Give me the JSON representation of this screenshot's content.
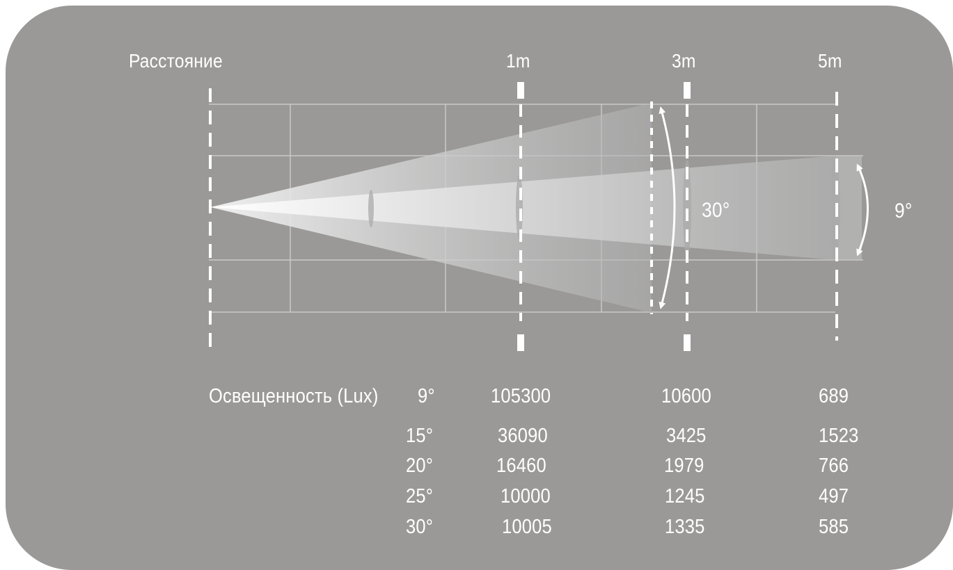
{
  "distance_label": "Расстояние",
  "distances": [
    "1m",
    "3m",
    "5m"
  ],
  "beam_angles": {
    "wide": "30°",
    "narrow": "9°"
  },
  "illuminance": {
    "header": "Освещенность (Lux)",
    "rows": [
      {
        "angle": "9°",
        "values": [
          "105300",
          "10600",
          "689"
        ]
      },
      {
        "angle": "15°",
        "values": [
          "36090",
          "3425",
          "1523"
        ]
      },
      {
        "angle": "20°",
        "values": [
          "16460",
          "1979",
          "766"
        ]
      },
      {
        "angle": "25°",
        "values": [
          "10000",
          "1245",
          "497"
        ]
      },
      {
        "angle": "30°",
        "values": [
          "10005",
          "1335",
          "585"
        ]
      }
    ]
  },
  "colors": {
    "background": "#9a9998",
    "lines": "#ffffff",
    "beam_light": "#ffffff"
  }
}
